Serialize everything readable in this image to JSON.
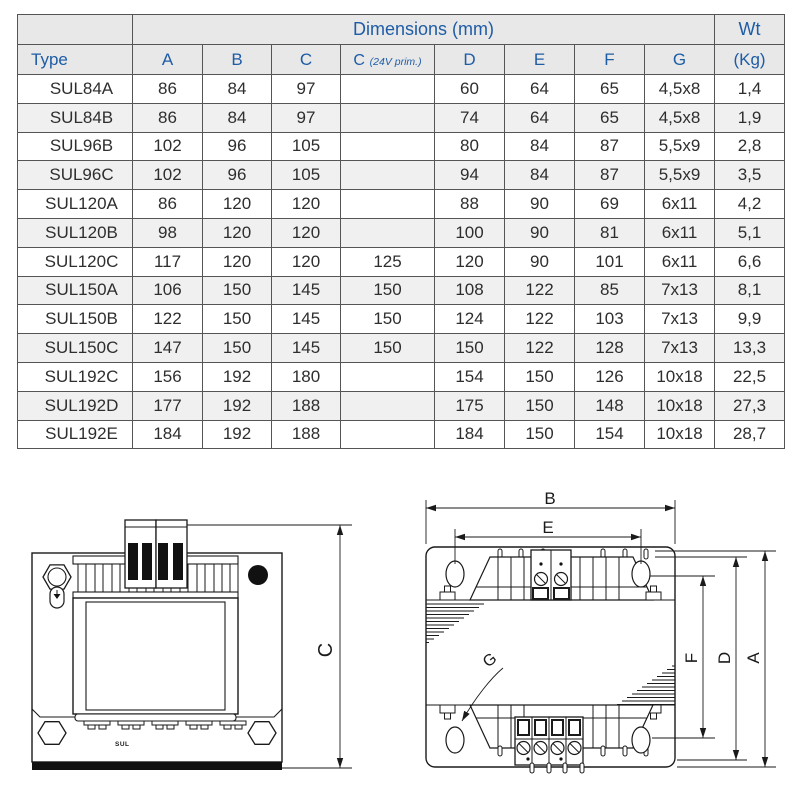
{
  "table": {
    "group_header": {
      "dimensions": "Dimensions (mm)",
      "weight": "Wt"
    },
    "columns": {
      "type": "Type",
      "a": "A",
      "b": "B",
      "c": "C",
      "c24_main": "C",
      "c24_sub": "(24V prim.)",
      "d": "D",
      "e": "E",
      "f": "F",
      "g": "G",
      "kg": "(Kg)"
    },
    "rows": [
      {
        "type": "SUL84A",
        "a": "86",
        "b": "84",
        "c": "97",
        "c24": "",
        "d": "60",
        "e": "64",
        "f": "65",
        "g": "4,5x8",
        "wt": "1,4"
      },
      {
        "type": "SUL84B",
        "a": "86",
        "b": "84",
        "c": "97",
        "c24": "",
        "d": "74",
        "e": "64",
        "f": "65",
        "g": "4,5x8",
        "wt": "1,9"
      },
      {
        "type": "SUL96B",
        "a": "102",
        "b": "96",
        "c": "105",
        "c24": "",
        "d": "80",
        "e": "84",
        "f": "87",
        "g": "5,5x9",
        "wt": "2,8"
      },
      {
        "type": "SUL96C",
        "a": "102",
        "b": "96",
        "c": "105",
        "c24": "",
        "d": "94",
        "e": "84",
        "f": "87",
        "g": "5,5x9",
        "wt": "3,5"
      },
      {
        "type": "SUL120A",
        "a": "86",
        "b": "120",
        "c": "120",
        "c24": "",
        "d": "88",
        "e": "90",
        "f": "69",
        "g": "6x11",
        "wt": "4,2"
      },
      {
        "type": "SUL120B",
        "a": "98",
        "b": "120",
        "c": "120",
        "c24": "",
        "d": "100",
        "e": "90",
        "f": "81",
        "g": "6x11",
        "wt": "5,1"
      },
      {
        "type": "SUL120C",
        "a": "117",
        "b": "120",
        "c": "120",
        "c24": "125",
        "d": "120",
        "e": "90",
        "f": "101",
        "g": "6x11",
        "wt": "6,6"
      },
      {
        "type": "SUL150A",
        "a": "106",
        "b": "150",
        "c": "145",
        "c24": "150",
        "d": "108",
        "e": "122",
        "f": "85",
        "g": "7x13",
        "wt": "8,1"
      },
      {
        "type": "SUL150B",
        "a": "122",
        "b": "150",
        "c": "145",
        "c24": "150",
        "d": "124",
        "e": "122",
        "f": "103",
        "g": "7x13",
        "wt": "9,9"
      },
      {
        "type": "SUL150C",
        "a": "147",
        "b": "150",
        "c": "145",
        "c24": "150",
        "d": "150",
        "e": "122",
        "f": "128",
        "g": "7x13",
        "wt": "13,3"
      },
      {
        "type": "SUL192C",
        "a": "156",
        "b": "192",
        "c": "180",
        "c24": "",
        "d": "154",
        "e": "150",
        "f": "126",
        "g": "10x18",
        "wt": "22,5"
      },
      {
        "type": "SUL192D",
        "a": "177",
        "b": "192",
        "c": "188",
        "c24": "",
        "d": "175",
        "e": "150",
        "f": "148",
        "g": "10x18",
        "wt": "27,3"
      },
      {
        "type": "SUL192E",
        "a": "184",
        "b": "192",
        "c": "188",
        "c24": "",
        "d": "184",
        "e": "150",
        "f": "154",
        "g": "10x18",
        "wt": "28,7"
      }
    ]
  },
  "drawings": {
    "front_view": {
      "dim_c": "C",
      "brand": "SUL"
    },
    "top_view": {
      "dim_b": "B",
      "dim_e": "E",
      "dim_g": "G",
      "dim_f": "F",
      "dim_d": "D",
      "dim_a": "A"
    }
  },
  "colors": {
    "header_blue": "#1e5ca6",
    "header_bg": "#e8e8e8",
    "row_alt": "#f0f0f0",
    "line": "#1a1a1a"
  }
}
